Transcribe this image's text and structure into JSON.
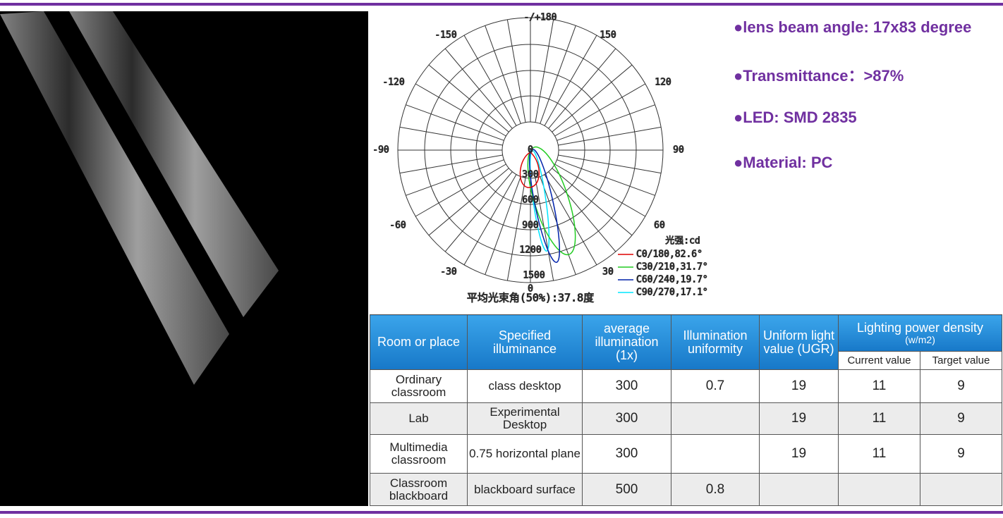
{
  "polar": {
    "angle_labels": [
      "-/+180",
      "150",
      "-150",
      "120",
      "-120",
      "90",
      "-90",
      "60",
      "-60",
      "30",
      "-30",
      "0"
    ],
    "radial_labels": [
      "0",
      "300",
      "600",
      "900",
      "1200",
      "1500"
    ],
    "legend_title": "光强:cd",
    "legend": [
      "C0/180,82.6°",
      "C30/210,31.7°",
      "C60/240,19.7°",
      "C90/270,17.1°"
    ],
    "caption": "平均光束角(50%):37.8度"
  },
  "bullets": [
    "●lens beam  angle: 17x83 degree",
    "●Transmittance：>87%",
    "●LED:  SMD 2835",
    "●Material: PC"
  ],
  "table": {
    "header": [
      "Room or place",
      "Specified illuminance",
      "average illumination (1x)",
      "Illumination uniformity",
      "Uniform light value (UGR)"
    ],
    "group_title": "Lighting power density",
    "group_unit": "(w/m2)",
    "subheader": [
      "Current value",
      "Target value"
    ],
    "rows": [
      [
        "Ordinary classroom",
        "class desktop",
        300,
        0.7,
        19,
        11,
        9
      ],
      [
        "Lab",
        "Experimental Desktop",
        300,
        null,
        19,
        11,
        9
      ],
      [
        "Multimedia classroom",
        "0.75 horizontal plane",
        300,
        null,
        19,
        11,
        9
      ],
      [
        "Classroom blackboard",
        "blackboard surface",
        500,
        0.8,
        null,
        null,
        null
      ]
    ]
  }
}
